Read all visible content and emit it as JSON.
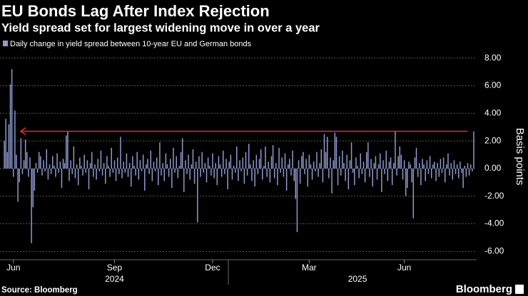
{
  "chart_data": {
    "type": "bar",
    "title": "EU Bonds Lag After Index Rejection",
    "subtitle": "Yield spread set for largest widening move in over a year",
    "series": [
      {
        "name": "Daily change in yield spread between 10-year EU and German bonds",
        "color": "#8f9bd0",
        "values": [
          2.0,
          3.6,
          1.2,
          3.2,
          6.1,
          7.2,
          -0.6,
          4.2,
          1.0,
          -2.4,
          -1.0,
          2.2,
          -0.4,
          0.6,
          2.1,
          1.2,
          -0.6,
          0.8,
          -5.4,
          -2.8,
          -1.6,
          0.4,
          -0.3,
          1.2,
          0.9,
          -0.5,
          0.6,
          -0.2,
          1.4,
          -0.8,
          0.3,
          -0.4,
          0.9,
          0.2,
          -0.6,
          1.1,
          -0.3,
          0.5,
          -1.4,
          0.7,
          0.4,
          2.4,
          2.7,
          -0.9,
          0.6,
          -0.4,
          1.6,
          -0.7,
          0.3,
          -1.2,
          0.8,
          0.2,
          -0.5,
          1.0,
          -0.3,
          0.6,
          -1.5,
          0.4,
          1.2,
          -0.6,
          0.3,
          -0.8,
          0.7,
          -0.2,
          1.3,
          -0.5,
          0.4,
          -1.1,
          0.9,
          0.2,
          -0.6,
          1.5,
          -0.3,
          0.6,
          -0.9,
          0.8,
          -0.4,
          2.3,
          -0.7,
          0.5,
          -0.3,
          1.1,
          -0.6,
          0.4,
          -1.3,
          0.9,
          0.2,
          -0.5,
          1.2,
          -0.8,
          0.6,
          -0.2,
          1.0,
          -1.6,
          0.3,
          0.7,
          -0.4,
          1.3,
          -0.9,
          0.5,
          -0.2,
          0.8,
          -1.2,
          1.9,
          -0.5,
          0.4,
          -0.9,
          1.1,
          0.3,
          -0.6,
          0.7,
          -1.4,
          1.5,
          -0.3,
          0.9,
          -0.7,
          0.2,
          1.2,
          2.2,
          -1.7,
          0.6,
          -0.4,
          1.0,
          -0.8,
          0.3,
          1.4,
          -1.1,
          0.5,
          -3.9,
          0.9,
          -0.6,
          1.2,
          -0.3,
          0.4,
          -1.0,
          0.8,
          0.2,
          -0.5,
          1.1,
          -0.7,
          0.4,
          -1.2,
          0.9,
          0.3,
          -0.6,
          1.3,
          -0.4,
          0.7,
          -1.5,
          0.5,
          1.0,
          -0.8,
          0.2,
          -0.3,
          1.6,
          -0.9,
          0.6,
          -0.2,
          0.8,
          -1.1,
          1.2,
          -0.5,
          1.8,
          0.3,
          -0.9,
          0.6,
          -1.3,
          1.0,
          -0.4,
          0.7,
          1.4,
          -0.8,
          0.2,
          1.6,
          -0.6,
          0.5,
          -1.0,
          0.9,
          1.7,
          -0.7,
          0.4,
          -1.2,
          1.5,
          -0.3,
          0.8,
          -0.6,
          1.1,
          -1.6,
          0.3,
          0.7,
          -0.5,
          1.3,
          -0.9,
          -2.2,
          -4.6,
          0.6,
          -1.1,
          0.9,
          1.2,
          -0.4,
          0.7,
          -1.3,
          1.0,
          0.3,
          -0.8,
          0.5,
          -0.2,
          1.2,
          -0.6,
          0.4,
          1.4,
          -1.0,
          2.5,
          1.2,
          2.3,
          -0.7,
          0.8,
          -1.8,
          0.6,
          2.6,
          2.3,
          -1.2,
          0.9,
          -0.5,
          1.3,
          0.4,
          -0.9,
          1.0,
          -1.5,
          0.6,
          1.9,
          -0.3,
          -1.2,
          0.8,
          0.2,
          -0.7,
          1.1,
          -0.4,
          0.5,
          -1.0,
          1.2,
          1.9,
          -0.6,
          0.7,
          -1.3,
          0.4,
          0.9,
          -0.8,
          0.3,
          1.1,
          -1.7,
          0.6,
          -0.4,
          1.3,
          -0.9,
          0.5,
          0.8,
          -1.2,
          0.4,
          2.7,
          -0.5,
          0.9,
          1.6,
          1.0,
          -0.8,
          0.6,
          -2.0,
          -1.4,
          0.5,
          0.3,
          -1.0,
          -3.6,
          0.8,
          1.5,
          -0.6,
          0.4,
          -1.2,
          0.7,
          0.3,
          -0.9,
          0.6,
          -0.4,
          0.9,
          -0.7,
          0.3,
          0.5,
          -0.9,
          0.4,
          -0.6,
          0.7,
          -0.3,
          0.8,
          -1.0,
          0.3,
          1.1,
          -0.5,
          0.4,
          -0.8,
          0.6,
          -0.4,
          0.3,
          -0.7,
          0.5,
          -0.3,
          -1.4,
          0.2,
          -0.6,
          0.4,
          -0.5,
          0.3,
          -0.2,
          2.7
        ]
      }
    ],
    "xticks": [
      {
        "value": 6,
        "label": "Jun"
      },
      {
        "value": 73,
        "label": "Sep"
      },
      {
        "value": 138,
        "label": "Dec"
      },
      {
        "value": 202,
        "label": "Mar"
      },
      {
        "value": 265,
        "label": "Jun"
      }
    ],
    "x_year_labels": [
      {
        "value": 73,
        "label": "2024"
      },
      {
        "value": 234,
        "label": "2025"
      }
    ],
    "y_label": "Basis points",
    "ylim": [
      -6.6,
      8.6
    ],
    "yticks": [
      {
        "value": -6,
        "label": "-6.00"
      },
      {
        "value": -4,
        "label": "-4.00"
      },
      {
        "value": -2,
        "label": "-2.00"
      },
      {
        "value": 0,
        "label": "0.00"
      },
      {
        "value": 2,
        "label": "2.00"
      },
      {
        "value": 4,
        "label": "4.00"
      },
      {
        "value": 6,
        "label": "6.00"
      },
      {
        "value": 8,
        "label": "8.00"
      }
    ],
    "grid": true,
    "arrow": {
      "value": 2.7,
      "color": "#e8263e"
    },
    "source": "Source: Bloomberg",
    "brand": "Bloomberg"
  }
}
